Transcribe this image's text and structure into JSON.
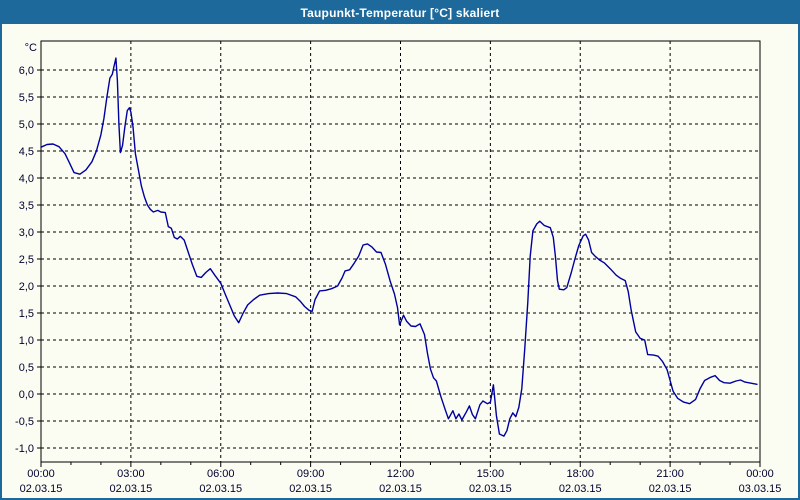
{
  "window": {
    "title": "Taupunkt-Temperatur [°C] skaliert"
  },
  "colors": {
    "titlebar_bg": "#1d699c",
    "titlebar_text": "#ffffff",
    "frame_border": "#1d699c",
    "background": "#fbfdf2",
    "grid": "#000000",
    "axis": "#000000",
    "tick_text": "#000030",
    "line": "#0000a0"
  },
  "chart_data": {
    "type": "line",
    "title": "Taupunkt-Temperatur [°C] skaliert",
    "ylabel": "°C",
    "xlabel": "",
    "xlim_hours": [
      0,
      24
    ],
    "ylim": [
      -1.26,
      6.54
    ],
    "grid": "dashed",
    "legend_position": "none",
    "minor_x_tick_hours": 1,
    "y_ticks": [
      {
        "value": 6.0,
        "label": "6,0"
      },
      {
        "value": 5.5,
        "label": "5,5"
      },
      {
        "value": 5.0,
        "label": "5,0"
      },
      {
        "value": 4.5,
        "label": "4,5"
      },
      {
        "value": 4.0,
        "label": "4,0"
      },
      {
        "value": 3.5,
        "label": "3,5"
      },
      {
        "value": 3.0,
        "label": "3,0"
      },
      {
        "value": 2.5,
        "label": "2,5"
      },
      {
        "value": 2.0,
        "label": "2,0"
      },
      {
        "value": 1.5,
        "label": "1,5"
      },
      {
        "value": 1.0,
        "label": "1,0"
      },
      {
        "value": 0.5,
        "label": "0,5"
      },
      {
        "value": 0.0,
        "label": "0,0"
      },
      {
        "value": -0.5,
        "label": "-0,5"
      },
      {
        "value": -1.0,
        "label": "-1,0"
      }
    ],
    "x_ticks": [
      {
        "hour": 0,
        "time": "00:00",
        "date": "02.03.15"
      },
      {
        "hour": 3,
        "time": "03:00",
        "date": "02.03.15"
      },
      {
        "hour": 6,
        "time": "06:00",
        "date": "02.03.15"
      },
      {
        "hour": 9,
        "time": "09:00",
        "date": "02.03.15"
      },
      {
        "hour": 12,
        "time": "12:00",
        "date": "02.03.15"
      },
      {
        "hour": 15,
        "time": "15:00",
        "date": "02.03.15"
      },
      {
        "hour": 18,
        "time": "18:00",
        "date": "02.03.15"
      },
      {
        "hour": 21,
        "time": "21:00",
        "date": "02.03.15"
      },
      {
        "hour": 24,
        "time": "00:00",
        "date": "03.03.15"
      }
    ],
    "series": [
      {
        "name": "Taupunkt-Temperatur [°C] skaliert",
        "color": "#0000a0",
        "points": [
          [
            0.0,
            4.57
          ],
          [
            0.2,
            4.62
          ],
          [
            0.4,
            4.63
          ],
          [
            0.6,
            4.58
          ],
          [
            0.8,
            4.45
          ],
          [
            0.95,
            4.28
          ],
          [
            1.1,
            4.1
          ],
          [
            1.3,
            4.07
          ],
          [
            1.5,
            4.15
          ],
          [
            1.7,
            4.3
          ],
          [
            1.85,
            4.5
          ],
          [
            2.0,
            4.8
          ],
          [
            2.1,
            5.1
          ],
          [
            2.2,
            5.5
          ],
          [
            2.3,
            5.85
          ],
          [
            2.38,
            5.92
          ],
          [
            2.45,
            6.1
          ],
          [
            2.5,
            6.22
          ],
          [
            2.55,
            5.8
          ],
          [
            2.6,
            5.0
          ],
          [
            2.65,
            4.47
          ],
          [
            2.72,
            4.6
          ],
          [
            2.8,
            4.95
          ],
          [
            2.88,
            5.25
          ],
          [
            2.95,
            5.3
          ],
          [
            3.0,
            5.22
          ],
          [
            3.07,
            4.95
          ],
          [
            3.15,
            4.45
          ],
          [
            3.25,
            4.15
          ],
          [
            3.35,
            3.85
          ],
          [
            3.45,
            3.65
          ],
          [
            3.55,
            3.5
          ],
          [
            3.65,
            3.42
          ],
          [
            3.75,
            3.37
          ],
          [
            3.9,
            3.4
          ],
          [
            4.0,
            3.37
          ],
          [
            4.15,
            3.36
          ],
          [
            4.25,
            3.1
          ],
          [
            4.35,
            3.07
          ],
          [
            4.45,
            2.9
          ],
          [
            4.55,
            2.87
          ],
          [
            4.65,
            2.92
          ],
          [
            4.78,
            2.85
          ],
          [
            4.9,
            2.65
          ],
          [
            5.05,
            2.4
          ],
          [
            5.2,
            2.18
          ],
          [
            5.35,
            2.16
          ],
          [
            5.5,
            2.25
          ],
          [
            5.65,
            2.32
          ],
          [
            5.8,
            2.2
          ],
          [
            6.0,
            2.05
          ],
          [
            6.15,
            1.85
          ],
          [
            6.3,
            1.65
          ],
          [
            6.45,
            1.45
          ],
          [
            6.6,
            1.32
          ],
          [
            6.75,
            1.5
          ],
          [
            6.9,
            1.65
          ],
          [
            7.1,
            1.75
          ],
          [
            7.3,
            1.83
          ],
          [
            7.6,
            1.86
          ],
          [
            7.9,
            1.87
          ],
          [
            8.2,
            1.86
          ],
          [
            8.5,
            1.8
          ],
          [
            8.65,
            1.72
          ],
          [
            8.8,
            1.62
          ],
          [
            8.95,
            1.55
          ],
          [
            9.05,
            1.53
          ],
          [
            9.15,
            1.75
          ],
          [
            9.3,
            1.91
          ],
          [
            9.5,
            1.92
          ],
          [
            9.7,
            1.95
          ],
          [
            9.9,
            2.0
          ],
          [
            10.05,
            2.15
          ],
          [
            10.15,
            2.28
          ],
          [
            10.3,
            2.3
          ],
          [
            10.45,
            2.42
          ],
          [
            10.6,
            2.55
          ],
          [
            10.75,
            2.76
          ],
          [
            10.9,
            2.78
          ],
          [
            11.05,
            2.72
          ],
          [
            11.2,
            2.63
          ],
          [
            11.35,
            2.62
          ],
          [
            11.5,
            2.4
          ],
          [
            11.65,
            2.1
          ],
          [
            11.8,
            1.85
          ],
          [
            11.9,
            1.6
          ],
          [
            11.97,
            1.28
          ],
          [
            12.1,
            1.46
          ],
          [
            12.2,
            1.35
          ],
          [
            12.35,
            1.26
          ],
          [
            12.5,
            1.25
          ],
          [
            12.65,
            1.3
          ],
          [
            12.8,
            1.1
          ],
          [
            12.9,
            0.75
          ],
          [
            13.0,
            0.46
          ],
          [
            13.1,
            0.3
          ],
          [
            13.2,
            0.24
          ],
          [
            13.35,
            -0.05
          ],
          [
            13.5,
            -0.3
          ],
          [
            13.6,
            -0.46
          ],
          [
            13.75,
            -0.31
          ],
          [
            13.85,
            -0.46
          ],
          [
            13.95,
            -0.37
          ],
          [
            14.05,
            -0.48
          ],
          [
            14.2,
            -0.33
          ],
          [
            14.3,
            -0.22
          ],
          [
            14.4,
            -0.38
          ],
          [
            14.5,
            -0.46
          ],
          [
            14.65,
            -0.2
          ],
          [
            14.75,
            -0.13
          ],
          [
            14.9,
            -0.18
          ],
          [
            15.0,
            -0.15
          ],
          [
            15.1,
            0.17
          ],
          [
            15.2,
            -0.4
          ],
          [
            15.3,
            -0.74
          ],
          [
            15.45,
            -0.78
          ],
          [
            15.55,
            -0.68
          ],
          [
            15.65,
            -0.46
          ],
          [
            15.75,
            -0.35
          ],
          [
            15.85,
            -0.42
          ],
          [
            15.95,
            -0.25
          ],
          [
            16.05,
            0.1
          ],
          [
            16.15,
            0.85
          ],
          [
            16.25,
            1.7
          ],
          [
            16.33,
            2.55
          ],
          [
            16.42,
            3.02
          ],
          [
            16.55,
            3.15
          ],
          [
            16.65,
            3.2
          ],
          [
            16.8,
            3.12
          ],
          [
            17.0,
            3.08
          ],
          [
            17.1,
            2.9
          ],
          [
            17.17,
            2.55
          ],
          [
            17.24,
            2.1
          ],
          [
            17.3,
            1.94
          ],
          [
            17.45,
            1.93
          ],
          [
            17.55,
            1.97
          ],
          [
            17.7,
            2.25
          ],
          [
            17.82,
            2.5
          ],
          [
            17.95,
            2.75
          ],
          [
            18.1,
            2.93
          ],
          [
            18.18,
            2.96
          ],
          [
            18.28,
            2.85
          ],
          [
            18.38,
            2.62
          ],
          [
            18.5,
            2.55
          ],
          [
            18.65,
            2.48
          ],
          [
            18.8,
            2.43
          ],
          [
            19.0,
            2.32
          ],
          [
            19.2,
            2.2
          ],
          [
            19.35,
            2.14
          ],
          [
            19.5,
            2.1
          ],
          [
            19.6,
            1.9
          ],
          [
            19.7,
            1.55
          ],
          [
            19.85,
            1.15
          ],
          [
            20.0,
            1.03
          ],
          [
            20.15,
            1.0
          ],
          [
            20.25,
            0.73
          ],
          [
            20.45,
            0.72
          ],
          [
            20.6,
            0.7
          ],
          [
            20.75,
            0.6
          ],
          [
            20.9,
            0.45
          ],
          [
            21.0,
            0.25
          ],
          [
            21.1,
            0.05
          ],
          [
            21.25,
            -0.08
          ],
          [
            21.45,
            -0.15
          ],
          [
            21.65,
            -0.18
          ],
          [
            21.85,
            -0.1
          ],
          [
            22.0,
            0.1
          ],
          [
            22.15,
            0.25
          ],
          [
            22.35,
            0.31
          ],
          [
            22.5,
            0.34
          ],
          [
            22.65,
            0.25
          ],
          [
            22.8,
            0.21
          ],
          [
            23.0,
            0.2
          ],
          [
            23.2,
            0.24
          ],
          [
            23.35,
            0.26
          ],
          [
            23.5,
            0.22
          ],
          [
            23.7,
            0.2
          ],
          [
            23.9,
            0.18
          ]
        ]
      }
    ]
  }
}
